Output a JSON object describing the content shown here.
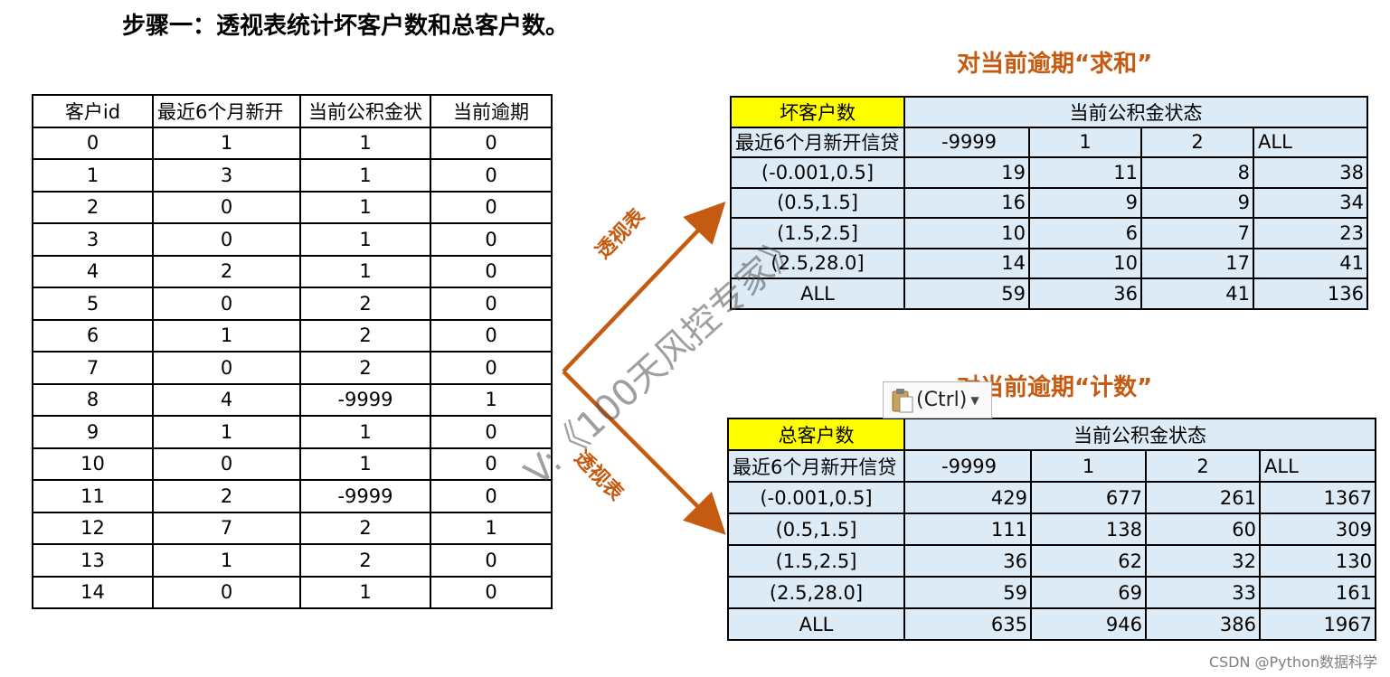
{
  "title": "步骤一：透视表统计坏客户数和总客户数。",
  "raw_table": {
    "headers": [
      "客户id",
      "最近6个月新开",
      "当前公积金状",
      "当前逾期"
    ],
    "rows": [
      [
        "0",
        "1",
        "1",
        "0"
      ],
      [
        "1",
        "3",
        "1",
        "0"
      ],
      [
        "2",
        "0",
        "1",
        "0"
      ],
      [
        "3",
        "0",
        "1",
        "0"
      ],
      [
        "4",
        "2",
        "1",
        "0"
      ],
      [
        "5",
        "0",
        "2",
        "0"
      ],
      [
        "6",
        "1",
        "2",
        "0"
      ],
      [
        "7",
        "0",
        "2",
        "0"
      ],
      [
        "8",
        "4",
        "-9999",
        "1"
      ],
      [
        "9",
        "1",
        "1",
        "0"
      ],
      [
        "10",
        "0",
        "1",
        "0"
      ],
      [
        "11",
        "2",
        "-9999",
        "0"
      ],
      [
        "12",
        "7",
        "2",
        "1"
      ],
      [
        "13",
        "1",
        "2",
        "0"
      ],
      [
        "14",
        "0",
        "1",
        "0"
      ]
    ]
  },
  "pivot_sum": {
    "heading": "对当前逾期“求和”",
    "corner_label": "坏客户数",
    "col_group": "当前公积金状态",
    "row_header": "最近6个月新开信贷",
    "cols": [
      "-9999",
      "1",
      "2",
      "ALL"
    ],
    "rows": [
      {
        "label": "(-0.001,0.5]",
        "values": [
          "19",
          "11",
          "8",
          "38"
        ]
      },
      {
        "label": "(0.5,1.5]",
        "values": [
          "16",
          "9",
          "9",
          "34"
        ]
      },
      {
        "label": "(1.5,2.5]",
        "values": [
          "10",
          "6",
          "7",
          "23"
        ]
      },
      {
        "label": "(2.5,28.0]",
        "values": [
          "14",
          "10",
          "17",
          "41"
        ]
      },
      {
        "label": "ALL",
        "values": [
          "59",
          "36",
          "41",
          "136"
        ]
      }
    ]
  },
  "pivot_count": {
    "heading": "对当前逾期“计数”",
    "corner_label": "总客户数",
    "col_group": "当前公积金状态",
    "row_header": "最近6个月新开信贷",
    "cols": [
      "-9999",
      "1",
      "2",
      "ALL"
    ],
    "rows": [
      {
        "label": "(-0.001,0.5]",
        "values": [
          "429",
          "677",
          "261",
          "1367"
        ]
      },
      {
        "label": "(0.5,1.5]",
        "values": [
          "111",
          "138",
          "60",
          "309"
        ]
      },
      {
        "label": "(1.5,2.5]",
        "values": [
          "36",
          "62",
          "32",
          "130"
        ]
      },
      {
        "label": "(2.5,28.0]",
        "values": [
          "59",
          "69",
          "33",
          "161"
        ]
      },
      {
        "label": "ALL",
        "values": [
          "635",
          "946",
          "386",
          "1967"
        ]
      }
    ]
  },
  "arrows": {
    "upper_label": "透视表",
    "lower_label": "透视表",
    "color": "#c55a11"
  },
  "paste_options": {
    "label": "(Ctrl)",
    "icon": "clipboard-icon"
  },
  "watermark": "V:《100天风控专家》",
  "footer": "CSDN @Python数据科学",
  "colors": {
    "accent": "#c55a11",
    "highlight": "#ffff00",
    "cell_fill": "#ddebf7"
  }
}
